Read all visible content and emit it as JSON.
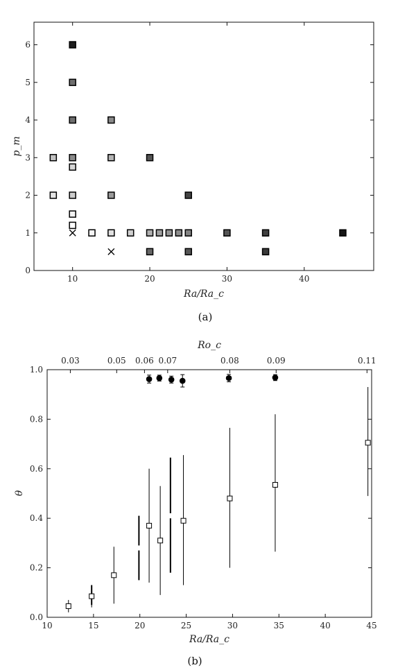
{
  "chart_data": [
    {
      "type": "scatter",
      "panel_label": "(a)",
      "xlabel": "Ra/Ra_c",
      "ylabel": "p_m",
      "xlim": [
        5,
        49
      ],
      "ylim": [
        0,
        6.6
      ],
      "x_ticks": [
        10,
        20,
        30,
        40
      ],
      "y_ticks": [
        0,
        1,
        2,
        3,
        4,
        5,
        6
      ],
      "points": [
        {
          "x": 10,
          "y": 6,
          "fill": "#1e1e1e"
        },
        {
          "x": 10,
          "y": 5,
          "fill": "#6e6e6e"
        },
        {
          "x": 10,
          "y": 4,
          "fill": "#6e6e6e"
        },
        {
          "x": 15,
          "y": 4,
          "fill": "#8a8a8a"
        },
        {
          "x": 7.5,
          "y": 3,
          "fill": "#c2c2c2"
        },
        {
          "x": 10,
          "y": 3,
          "fill": "#8a8a8a"
        },
        {
          "x": 15,
          "y": 3,
          "fill": "#b4b4b4"
        },
        {
          "x": 20,
          "y": 3,
          "fill": "#555555"
        },
        {
          "x": 10,
          "y": 2.75,
          "fill": "#d6d6d6"
        },
        {
          "x": 7.5,
          "y": 2,
          "fill": "#e4e4e4"
        },
        {
          "x": 10,
          "y": 2,
          "fill": "#cccccc"
        },
        {
          "x": 15,
          "y": 2,
          "fill": "#999999"
        },
        {
          "x": 25,
          "y": 2,
          "fill": "#444444"
        },
        {
          "x": 10,
          "y": 1.5,
          "fill": "#f2f2f2"
        },
        {
          "x": 10,
          "y": 1.2,
          "fill": "#ffffff"
        },
        {
          "x": 12.5,
          "y": 1,
          "fill": "#f5f5f5"
        },
        {
          "x": 15,
          "y": 1,
          "fill": "#e0e0e0"
        },
        {
          "x": 17.5,
          "y": 1,
          "fill": "#cfcfcf"
        },
        {
          "x": 20,
          "y": 1,
          "fill": "#b0b0b0"
        },
        {
          "x": 21.25,
          "y": 1,
          "fill": "#a0a0a0"
        },
        {
          "x": 22.5,
          "y": 1,
          "fill": "#969696"
        },
        {
          "x": 23.75,
          "y": 1,
          "fill": "#8c8c8c"
        },
        {
          "x": 25,
          "y": 1,
          "fill": "#828282"
        },
        {
          "x": 30,
          "y": 1,
          "fill": "#555555"
        },
        {
          "x": 35,
          "y": 1,
          "fill": "#404040"
        },
        {
          "x": 45,
          "y": 1,
          "fill": "#151515"
        },
        {
          "x": 20,
          "y": 0.5,
          "fill": "#666666"
        },
        {
          "x": 25,
          "y": 0.5,
          "fill": "#555555"
        },
        {
          "x": 35,
          "y": 0.5,
          "fill": "#3a3a3a"
        }
      ],
      "crosses": [
        {
          "x": 10,
          "y": 1
        },
        {
          "x": 15,
          "y": 0.5
        }
      ]
    },
    {
      "type": "scatter",
      "panel_label": "(b)",
      "xlabel": "Ra/Ra_c",
      "ylabel": "θ",
      "top_xlabel": "Ro_c",
      "xlim": [
        10,
        45
      ],
      "ylim": [
        0,
        1.0
      ],
      "x_ticks": [
        10,
        15,
        20,
        25,
        30,
        35,
        40,
        45
      ],
      "y_ticks": [
        "0.0",
        "0.2",
        "0.4",
        "0.6",
        "0.8",
        "1.0"
      ],
      "top_ticks": [
        {
          "x": 12.5,
          "label": "0.03"
        },
        {
          "x": 17.5,
          "label": "0.05"
        },
        {
          "x": 20.5,
          "label": "0.06"
        },
        {
          "x": 23.0,
          "label": "0.07"
        },
        {
          "x": 29.7,
          "label": "0.08"
        },
        {
          "x": 34.7,
          "label": "0.09"
        },
        {
          "x": 44.5,
          "label": "0.11"
        }
      ],
      "circles": [
        {
          "x": 21.0,
          "y": 0.962,
          "err": 0.016
        },
        {
          "x": 22.1,
          "y": 0.966,
          "err": 0.012
        },
        {
          "x": 23.4,
          "y": 0.96,
          "err": 0.014
        },
        {
          "x": 24.6,
          "y": 0.955,
          "err": 0.025
        },
        {
          "x": 29.6,
          "y": 0.966,
          "err": 0.015
        },
        {
          "x": 34.6,
          "y": 0.968,
          "err": 0.012
        }
      ],
      "squares": [
        {
          "x": 12.3,
          "y": 0.045,
          "lo": 0.02,
          "hi": 0.07
        },
        {
          "x": 14.8,
          "y": 0.085,
          "lo": 0.04,
          "hi": 0.13
        },
        {
          "x": 17.2,
          "y": 0.17,
          "lo": 0.055,
          "hi": 0.285
        },
        {
          "x": 21.0,
          "y": 0.37,
          "lo": 0.14,
          "hi": 0.6
        },
        {
          "x": 22.2,
          "y": 0.31,
          "lo": 0.09,
          "hi": 0.53
        },
        {
          "x": 24.7,
          "y": 0.39,
          "lo": 0.13,
          "hi": 0.655
        },
        {
          "x": 29.7,
          "y": 0.48,
          "lo": 0.2,
          "hi": 0.765
        },
        {
          "x": 34.6,
          "y": 0.535,
          "lo": 0.265,
          "hi": 0.82
        },
        {
          "x": 44.6,
          "y": 0.705,
          "lo": 0.49,
          "hi": 0.93
        }
      ],
      "bars": [
        {
          "x": 14.8,
          "lo": 0.05,
          "hi": 0.13
        },
        {
          "x": 19.9,
          "lo": 0.15,
          "hi": 0.27
        },
        {
          "x": 19.9,
          "lo": 0.29,
          "hi": 0.41
        },
        {
          "x": 23.3,
          "lo": 0.18,
          "hi": 0.4
        },
        {
          "x": 23.3,
          "lo": 0.42,
          "hi": 0.645
        }
      ]
    }
  ]
}
